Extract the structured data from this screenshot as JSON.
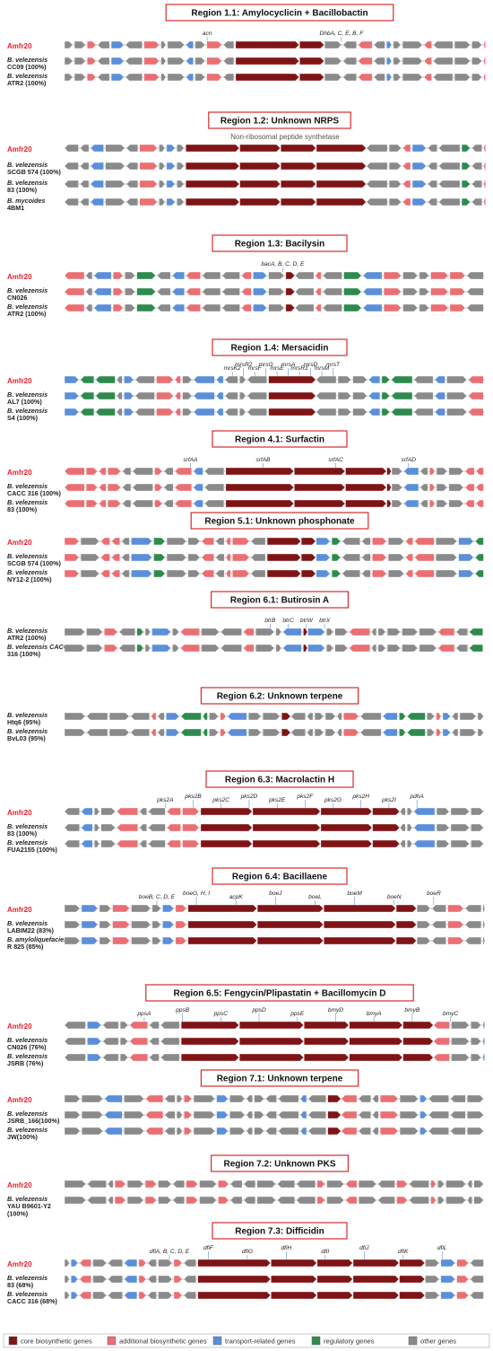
{
  "colors": {
    "core": "#7f1416",
    "additional": "#ea6f73",
    "transport": "#5b8fd9",
    "regulatory": "#2f8a4e",
    "other": "#8a8a8a",
    "title_border": "#d62b2b",
    "query_label": "#e8202a"
  },
  "legend": [
    {
      "key": "core",
      "label": "core biosynthetic genes"
    },
    {
      "key": "additional",
      "label": "additional biosynthetic genes"
    },
    {
      "key": "transport",
      "label": "transport-related genes"
    },
    {
      "key": "regulatory",
      "label": "regulatory genes"
    },
    {
      "key": "other",
      "label": "other genes"
    }
  ],
  "regions": [
    {
      "title": "Region 1.1: Amylocyclicin + Bacillobactin",
      "subtitle": "",
      "tracks": [
        {
          "label": [
            "Amfr20"
          ],
          "query": true
        },
        {
          "label": [
            "B. velezensis",
            "CC09 (100%)"
          ]
        },
        {
          "label": [
            "B. velezensis",
            "ATR2 (100%)"
          ]
        }
      ],
      "gene_labels": [
        "acn",
        "DhbA, C, E, B, F"
      ],
      "seed": 3,
      "core": [
        [
          0.4,
          0.62
        ]
      ],
      "mix": [
        "o",
        "o",
        "a",
        "o",
        "t",
        "o",
        "a",
        "o",
        "o",
        "t",
        "o",
        "a",
        "o",
        "o",
        "o",
        "a",
        "o",
        "t",
        "o",
        "o",
        "a",
        "o"
      ]
    },
    {
      "title": "Region 1.2: Unknown NRPS",
      "subtitle": "Non-ribosomal peptide synthetase",
      "tracks": [
        {
          "label": [
            "Amfr20"
          ],
          "query": true
        },
        {
          "label": [
            "B. velezensis",
            "SCGB 574 (100%)"
          ]
        },
        {
          "label": [
            "B. velezensis",
            "83 (100%)"
          ]
        },
        {
          "label": [
            "B. mycoides",
            "4BM1"
          ]
        }
      ],
      "gene_labels": [],
      "seed": 7,
      "core": [
        [
          0.28,
          0.72
        ]
      ],
      "mix": [
        "o",
        "o",
        "t",
        "o",
        "o",
        "a",
        "o",
        "t",
        "o",
        "o",
        "o",
        "a",
        "t",
        "o",
        "o",
        "r",
        "o",
        "a",
        "o",
        "t"
      ]
    },
    {
      "title": "Region 1.3: Bacilysin",
      "subtitle": "",
      "tracks": [
        {
          "label": [
            "Amfr20"
          ],
          "query": true
        },
        {
          "label": [
            "B. velezensis",
            "CN026"
          ]
        },
        {
          "label": [
            "B. velezensis",
            "ATR2 (100%)"
          ]
        }
      ],
      "gene_labels": [
        "bacA, B, C, D, E"
      ],
      "seed": 11,
      "core": [
        [
          0.51,
          0.55
        ]
      ],
      "mix": [
        "a",
        "o",
        "t",
        "a",
        "o",
        "r",
        "o",
        "t",
        "a",
        "o",
        "o",
        "a",
        "t",
        "o",
        "o",
        "a",
        "o",
        "r",
        "t",
        "a",
        "o",
        "o",
        "a"
      ]
    },
    {
      "title": "Region 1.4: Mersacidin",
      "subtitle": "",
      "tracks": [
        {
          "label": [
            "Amfr20"
          ],
          "query": true
        },
        {
          "label": [
            "B. velezensis",
            "AL7 (100%)"
          ]
        },
        {
          "label": [
            "B. velezensis",
            "S4 (100%)"
          ]
        }
      ],
      "gene_labels": [
        "mrsK2",
        "mrsR2",
        "mrsF",
        "mrsG",
        "mrsE",
        "mrsA",
        "mrsR1",
        "mrsD",
        "mrsM",
        "mrsT"
      ],
      "seed": 13,
      "core": [
        [
          0.46,
          0.6
        ]
      ],
      "mix": [
        "t",
        "r",
        "r",
        "o",
        "t",
        "o",
        "a",
        "a",
        "o",
        "t",
        "t",
        "o",
        "o",
        "o",
        "o",
        "o",
        "o"
      ]
    },
    {
      "title": "Region 4.1: Surfactin",
      "subtitle": "",
      "tracks": [
        {
          "label": [
            "Amfr20"
          ],
          "query": true
        },
        {
          "label": [
            "B. velezensis",
            "CACC 316 (100%)"
          ]
        },
        {
          "label": [
            "B. velezensis",
            "83 (100%)"
          ]
        }
      ],
      "gene_labels": [
        "srfAA",
        "srfAB",
        "srfAC",
        "srfAD"
      ],
      "seed": 17,
      "core": [
        [
          0.36,
          0.78
        ]
      ],
      "mix": [
        "a",
        "a",
        "a",
        "a",
        "o",
        "o",
        "a",
        "o",
        "a",
        "t",
        "o",
        "o",
        "t",
        "o",
        "a",
        "o",
        "o"
      ]
    },
    {
      "title": "Region 5.1: Unknown phosphonate",
      "subtitle": "",
      "tracks": [
        {
          "label": [
            "Amfr20"
          ],
          "query": true
        },
        {
          "label": [
            "B. velezensis",
            "SCGB 574 (100%)"
          ]
        },
        {
          "label": [
            "B. velezensis",
            "NY12-2 (100%)"
          ]
        }
      ],
      "gene_labels": [],
      "seed": 19,
      "core": [
        [
          0.48,
          0.6
        ]
      ],
      "mix": [
        "a",
        "o",
        "a",
        "a",
        "o",
        "t",
        "r",
        "o",
        "o"
      ]
    },
    {
      "title": "Region 6.1: Butirosin A",
      "subtitle": "",
      "tracks": [
        {
          "label": [
            "B. velezensis",
            "ATR2 (100%)"
          ]
        },
        {
          "label": [
            "B. velezensis CACC",
            "316 (100%)"
          ]
        }
      ],
      "gene_labels": [
        "btrB",
        "btrC",
        "btrW",
        "btrX"
      ],
      "seed": 23,
      "core": [
        [
          0.55,
          0.58
        ]
      ],
      "mix": [
        "o",
        "o",
        "a",
        "o",
        "r",
        "o",
        "t",
        "o",
        "a",
        "o",
        "o",
        "a",
        "o",
        "o",
        "t",
        "t",
        "o",
        "o",
        "a",
        "o",
        "o",
        "o"
      ]
    },
    {
      "title": "Region 6.2: Unknown terpene",
      "subtitle": "",
      "tracks": [
        {
          "label": [
            "B. velezensis",
            "Htq6 (95%)"
          ]
        },
        {
          "label": [
            "B. velezensis",
            "BvL03 (95%)"
          ]
        }
      ],
      "gene_labels": [],
      "seed": 29,
      "core": [
        [
          0.5,
          0.54
        ]
      ],
      "mix": [
        "o",
        "o",
        "o",
        "o",
        "a",
        "o",
        "t",
        "r",
        "r",
        "o",
        "a",
        "t",
        "o",
        "o",
        "o"
      ]
    },
    {
      "title": "Region 6.3: Macrolactin H",
      "subtitle": "",
      "tracks": [
        {
          "label": [
            "Amfr20"
          ],
          "query": true
        },
        {
          "label": [
            "B. velezensis",
            "83 (100%)"
          ]
        },
        {
          "label": [
            "B. velezensis",
            "FUA2155 (100%)"
          ]
        }
      ],
      "gene_labels": [
        "pks2A",
        "pks2B",
        "pks2C",
        "pks2D",
        "pks2E",
        "pks2F",
        "pks2G",
        "pks2H",
        "pks2I",
        "pdhA"
      ],
      "seed": 31,
      "core": [
        [
          0.3,
          0.8
        ]
      ],
      "mix": [
        "o",
        "t",
        "o",
        "o",
        "a",
        "o",
        "o",
        "a",
        "a",
        "o",
        "o",
        "t",
        "o",
        "o"
      ]
    },
    {
      "title": "Region 6.4: Bacillaene",
      "subtitle": "",
      "tracks": [
        {
          "label": [
            "Amfr20"
          ],
          "query": true
        },
        {
          "label": [
            "B. velezensis",
            "LABIM22 (83%)"
          ]
        },
        {
          "label": [
            "B. amyloliquefaciens",
            "R 825 (85%)"
          ]
        }
      ],
      "gene_labels": [
        "boeB, C, D, E",
        "boeG, H, I",
        "acpK",
        "boeJ",
        "boeL",
        "boeM",
        "boeN",
        "boeR"
      ],
      "seed": 37,
      "core": [
        [
          0.28,
          0.84
        ]
      ],
      "mix": [
        "o",
        "t",
        "o",
        "a",
        "o",
        "o",
        "t",
        "a",
        "o",
        "o",
        "a",
        "o"
      ]
    },
    {
      "title": "Region 6.5: Fengycin/Plipastatin + Bacillomycin D",
      "subtitle": "",
      "tracks": [
        {
          "label": [
            "Amfr20"
          ],
          "query": true
        },
        {
          "label": [
            "B. velezensis",
            "CN026 (76%)"
          ]
        },
        {
          "label": [
            "B. velezensis",
            "JSRB (76%)"
          ]
        }
      ],
      "gene_labels": [
        "ppsA",
        "ppsB",
        "ppsC",
        "ppsD",
        "ppsE",
        "bmyD",
        "bmyA",
        "bmyB",
        "bmyC"
      ],
      "seed": 41,
      "core": [
        [
          0.25,
          0.88
        ]
      ],
      "mix": [
        "o",
        "t",
        "o",
        "o",
        "a",
        "o",
        "o",
        "a",
        "o",
        "o",
        "t",
        "o"
      ]
    },
    {
      "title": "Region 7.1: Unknown terpene",
      "subtitle": "",
      "tracks": [
        {
          "label": [
            "Amfr20"
          ],
          "query": true
        },
        {
          "label": [
            "B. velezensis",
            "JSRB_166(100%)"
          ]
        },
        {
          "label": [
            "B. velezensis",
            "JW(100%)"
          ]
        }
      ],
      "gene_labels": [],
      "seed": 43,
      "core": [
        [
          0.6,
          0.66
        ]
      ],
      "mix": [
        "o",
        "o",
        "t",
        "o",
        "a",
        "o",
        "o",
        "a",
        "o",
        "t",
        "o",
        "o",
        "o"
      ]
    },
    {
      "title": "Region 7.2: Unknown PKS",
      "subtitle": "",
      "tracks": [
        {
          "label": [
            "Amfr20"
          ],
          "query": true
        },
        {
          "label": [
            "B. velezensis",
            "YAU B9601-Y2",
            "(100%)"
          ]
        }
      ],
      "gene_labels": [],
      "seed": 47,
      "core": [
        [
          0.56,
          0.6
        ]
      ],
      "mix": [
        "o",
        "o",
        "o",
        "a",
        "o",
        "a",
        "o",
        "o",
        "a",
        "o",
        "a",
        "o",
        "o"
      ]
    },
    {
      "title": "Region 7.3: Difficidin",
      "subtitle": "",
      "tracks": [
        {
          "label": [
            "Amfr20"
          ],
          "query": true
        },
        {
          "label": [
            "B. velezensis",
            "83 (68%)"
          ]
        },
        {
          "label": [
            "B. velezensis",
            "CACC 316 (68%)"
          ]
        }
      ],
      "gene_labels": [
        "dfiA, B, C, D, E",
        "dfiF",
        "dfiG",
        "dfiH",
        "dfiI",
        "dfiJ",
        "dfiK",
        "dfiL"
      ],
      "seed": 53,
      "core": [
        [
          0.31,
          0.86
        ]
      ],
      "mix": [
        "o",
        "t",
        "a",
        "o",
        "o",
        "t",
        "a",
        "o",
        "o",
        "a",
        "o"
      ]
    }
  ]
}
